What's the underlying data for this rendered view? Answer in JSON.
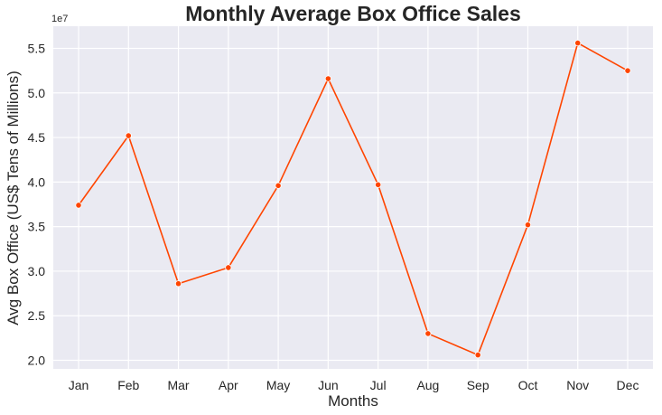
{
  "chart_data": {
    "type": "line",
    "title": "Monthly Average Box Office Sales",
    "xlabel": "Months",
    "ylabel": "Avg Box Office (US$ Tens of Millions)",
    "y_offset_label": "1e7",
    "categories": [
      "Jan",
      "Feb",
      "Mar",
      "Apr",
      "May",
      "Jun",
      "Jul",
      "Aug",
      "Sep",
      "Oct",
      "Nov",
      "Dec"
    ],
    "series": [
      {
        "values": [
          37400000,
          45200000,
          28600000,
          30400000,
          39600000,
          51600000,
          39700000,
          23000000,
          20600000,
          35200000,
          55600000,
          52500000
        ]
      }
    ],
    "yticks": [
      20000000,
      25000000,
      30000000,
      35000000,
      40000000,
      45000000,
      50000000,
      55000000
    ],
    "ytick_labels": [
      "2.0",
      "2.5",
      "3.0",
      "3.5",
      "4.0",
      "4.5",
      "5.0",
      "5.5"
    ],
    "ylim": [
      19000000,
      57500000
    ],
    "grid": true,
    "colors": {
      "line": "#FF4500",
      "background": "#EAEAF2",
      "grid": "#FFFFFF"
    }
  }
}
